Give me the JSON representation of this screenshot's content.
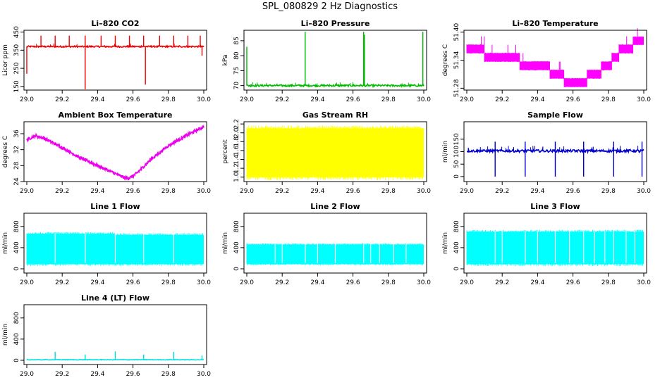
{
  "title": "SPL_080829  2 Hz Diagnostics",
  "chart_data": [
    {
      "type": "line",
      "title": "Li–820 CO2",
      "ylabel": "Licor ppm",
      "xlim": [
        29.0,
        30.0
      ],
      "ylim": [
        130,
        460
      ],
      "xticks": [
        "29.0",
        "29.2",
        "29.4",
        "29.6",
        "29.8",
        "30.0"
      ],
      "yticks": [
        150,
        250,
        350,
        450
      ],
      "color": "#ee0000",
      "pattern": "spikes",
      "base": 370,
      "noise": 4,
      "spikes": [
        {
          "x": 29.0,
          "y": 220
        },
        {
          "x": 29.08,
          "y": 430
        },
        {
          "x": 29.16,
          "y": 430
        },
        {
          "x": 29.24,
          "y": 430
        },
        {
          "x": 29.33,
          "y": 135
        },
        {
          "x": 29.33,
          "y": 430
        },
        {
          "x": 29.42,
          "y": 430
        },
        {
          "x": 29.5,
          "y": 430
        },
        {
          "x": 29.58,
          "y": 430
        },
        {
          "x": 29.66,
          "y": 430
        },
        {
          "x": 29.67,
          "y": 160
        },
        {
          "x": 29.75,
          "y": 430
        },
        {
          "x": 29.83,
          "y": 430
        },
        {
          "x": 29.91,
          "y": 430
        },
        {
          "x": 29.98,
          "y": 430
        },
        {
          "x": 29.99,
          "y": 320
        }
      ]
    },
    {
      "type": "line",
      "title": "Li–820 Pressure",
      "ylabel": "kPa",
      "xlim": [
        29.0,
        30.0
      ],
      "ylim": [
        68.5,
        88.5
      ],
      "xticks": [
        "29.0",
        "29.2",
        "29.4",
        "29.6",
        "29.8",
        "30.0"
      ],
      "yticks": [
        70,
        75,
        80,
        85
      ],
      "color": "#00bb00",
      "pattern": "spikes",
      "base": 70.0,
      "noise": 0.3,
      "spikes": [
        {
          "x": 29.0,
          "y": 83
        },
        {
          "x": 29.33,
          "y": 88
        },
        {
          "x": 29.66,
          "y": 88
        },
        {
          "x": 29.665,
          "y": 87
        },
        {
          "x": 29.995,
          "y": 88
        }
      ]
    },
    {
      "type": "line",
      "title": "Li–820 Temperature",
      "ylabel": "degrees C",
      "xlim": [
        29.0,
        30.0
      ],
      "ylim": [
        51.276,
        51.404
      ],
      "xticks": [
        "29.0",
        "29.2",
        "29.4",
        "29.6",
        "29.8",
        "30.0"
      ],
      "yticks": [
        "51.28",
        "51.34",
        "51.40"
      ],
      "color": "#ff00ff",
      "pattern": "steps",
      "bands": [
        {
          "x0": 29.0,
          "x1": 29.1,
          "lo": 51.355,
          "hi": 51.373
        },
        {
          "x0": 29.1,
          "x1": 29.3,
          "lo": 51.337,
          "hi": 51.355
        },
        {
          "x0": 29.3,
          "x1": 29.47,
          "lo": 51.319,
          "hi": 51.337
        },
        {
          "x0": 29.47,
          "x1": 29.55,
          "lo": 51.301,
          "hi": 51.319
        },
        {
          "x0": 29.55,
          "x1": 29.68,
          "lo": 51.283,
          "hi": 51.301
        },
        {
          "x0": 29.68,
          "x1": 29.76,
          "lo": 51.301,
          "hi": 51.319
        },
        {
          "x0": 29.76,
          "x1": 29.82,
          "lo": 51.319,
          "hi": 51.337
        },
        {
          "x0": 29.82,
          "x1": 29.86,
          "lo": 51.337,
          "hi": 51.355
        },
        {
          "x0": 29.86,
          "x1": 29.94,
          "lo": 51.355,
          "hi": 51.373
        },
        {
          "x0": 29.94,
          "x1": 30.0,
          "lo": 51.373,
          "hi": 51.39
        }
      ]
    },
    {
      "type": "line",
      "title": "Ambient Box Temperature",
      "ylabel": "degrees C",
      "xlim": [
        29.0,
        30.0
      ],
      "ylim": [
        24,
        39
      ],
      "xticks": [
        "29.0",
        "29.2",
        "29.4",
        "29.6",
        "29.8",
        "30.0"
      ],
      "yticks": [
        24,
        28,
        32,
        36
      ],
      "color": "#ee00ee",
      "pattern": "curve",
      "noise": 0.35,
      "x": [
        29.0,
        29.05,
        29.1,
        29.2,
        29.3,
        29.4,
        29.5,
        29.55,
        29.58,
        29.62,
        29.7,
        29.8,
        29.9,
        30.0
      ],
      "y": [
        34.5,
        35.5,
        34.8,
        32.5,
        30.0,
        28.0,
        26.0,
        25.0,
        24.9,
        26.0,
        29.5,
        33.0,
        35.5,
        37.8
      ]
    },
    {
      "type": "line",
      "title": "Gas Stream RH",
      "ylabel": "percent",
      "xlim": [
        29.0,
        30.0
      ],
      "ylim": [
        0.9,
        2.25
      ],
      "xticks": [
        "29.0",
        "29.2",
        "29.4",
        "29.6",
        "29.8",
        "30.0"
      ],
      "yticks": [
        "1.0",
        "1.2",
        "1.4",
        "1.6",
        "1.8",
        "2.0",
        "2.2"
      ],
      "color": "#ffff00",
      "pattern": "band",
      "bands": [
        {
          "x0": 29.0,
          "x1": 30.0,
          "lo": 1.0,
          "hi": 2.1
        }
      ]
    },
    {
      "type": "line",
      "title": "Sample Flow",
      "ylabel": "ml/min",
      "xlim": [
        29.0,
        30.0
      ],
      "ylim": [
        -20,
        220
      ],
      "xticks": [
        "29.0",
        "29.2",
        "29.4",
        "29.6",
        "29.8",
        "30.0"
      ],
      "yticks": [
        0,
        50,
        100,
        150
      ],
      "color": "#0000cc",
      "pattern": "spikes",
      "base": 103,
      "noise": 5,
      "spikes": [
        {
          "x": 29.16,
          "y": 0
        },
        {
          "x": 29.16,
          "y": 140
        },
        {
          "x": 29.33,
          "y": 0
        },
        {
          "x": 29.33,
          "y": 140
        },
        {
          "x": 29.5,
          "y": 0
        },
        {
          "x": 29.5,
          "y": 140
        },
        {
          "x": 29.66,
          "y": 0
        },
        {
          "x": 29.66,
          "y": 140
        },
        {
          "x": 29.83,
          "y": 0
        },
        {
          "x": 29.83,
          "y": 140
        },
        {
          "x": 29.99,
          "y": 0
        },
        {
          "x": 29.99,
          "y": 140
        }
      ]
    },
    {
      "type": "line",
      "title": "Line 1 Flow",
      "ylabel": "ml/min",
      "xlim": [
        29.0,
        30.0
      ],
      "ylim": [
        -80,
        1050
      ],
      "xticks": [
        "29.0",
        "29.2",
        "29.4",
        "29.6",
        "29.8",
        "30.0"
      ],
      "yticks": [
        0,
        400,
        800
      ],
      "color": "#00ffff",
      "pattern": "band",
      "gaps": [
        29.16,
        29.33,
        29.5,
        29.66,
        29.83
      ],
      "bands": [
        {
          "x0": 29.0,
          "x1": 29.5,
          "lo": 90,
          "hi": 660
        },
        {
          "x0": 29.5,
          "x1": 30.0,
          "lo": 90,
          "hi": 640
        }
      ]
    },
    {
      "type": "line",
      "title": "Line 2 Flow",
      "ylabel": "ml/min",
      "xlim": [
        29.0,
        30.0
      ],
      "ylim": [
        -80,
        1050
      ],
      "xticks": [
        "29.0",
        "29.2",
        "29.4",
        "29.6",
        "29.8",
        "30.0"
      ],
      "yticks": [
        0,
        400,
        800
      ],
      "color": "#00ffff",
      "pattern": "band",
      "gaps": [
        29.16,
        29.2,
        29.33,
        29.4,
        29.5,
        29.66,
        29.7,
        29.75,
        29.83,
        29.9
      ],
      "bands": [
        {
          "x0": 29.0,
          "x1": 30.0,
          "lo": 90,
          "hi": 460
        }
      ]
    },
    {
      "type": "line",
      "title": "Line 3 Flow",
      "ylabel": "ml/min",
      "xlim": [
        29.0,
        30.0
      ],
      "ylim": [
        -80,
        1050
      ],
      "xticks": [
        "29.0",
        "29.2",
        "29.4",
        "29.6",
        "29.8",
        "30.0"
      ],
      "yticks": [
        0,
        400,
        800
      ],
      "color": "#00ffff",
      "pattern": "band",
      "gaps": [
        29.16,
        29.2,
        29.33,
        29.4,
        29.5,
        29.58,
        29.66,
        29.72,
        29.78,
        29.83,
        29.9,
        29.95
      ],
      "bands": [
        {
          "x0": 29.0,
          "x1": 30.0,
          "lo": 90,
          "hi": 700
        }
      ]
    },
    {
      "type": "line",
      "title": "Line 4 (LT) Flow",
      "ylabel": "ml/min",
      "xlim": [
        29.0,
        30.0
      ],
      "ylim": [
        -80,
        1050
      ],
      "xticks": [
        "29.0",
        "29.2",
        "29.4",
        "29.6",
        "29.8",
        "30.0"
      ],
      "yticks": [
        0,
        400,
        800
      ],
      "color": "#00dddd",
      "pattern": "spikes",
      "base": 10,
      "noise": 5,
      "spikes": [
        {
          "x": 29.16,
          "y": 160
        },
        {
          "x": 29.33,
          "y": 110
        },
        {
          "x": 29.5,
          "y": 170
        },
        {
          "x": 29.66,
          "y": 110
        },
        {
          "x": 29.83,
          "y": 160
        },
        {
          "x": 29.99,
          "y": 90
        }
      ]
    }
  ]
}
